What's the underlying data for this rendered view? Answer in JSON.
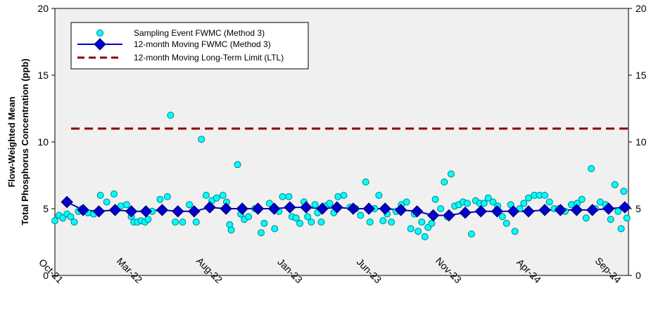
{
  "chart_data": {
    "type": "scatter",
    "ylabel_line1": "Flow-Weighted Mean",
    "ylabel_line2": "Total Phosphorus Concentration (ppb)",
    "ylim": [
      0,
      20
    ],
    "y_ticks": [
      0,
      5,
      10,
      15,
      20
    ],
    "y_tick_labels": [
      "0",
      "5",
      "10",
      "15",
      "20"
    ],
    "x_tick_labels": [
      "Oct-21",
      "Mar-22",
      "Aug-22",
      "Jan-23",
      "Jun-23",
      "Nov-23",
      "Apr-24",
      "Sep-24"
    ],
    "xlim": [
      "2021-10-01",
      "2024-10-01"
    ],
    "grid": false,
    "legend_position": "top-left",
    "colors": {
      "sampling": "#00FFFF",
      "sampling_edge": "#008080",
      "moving": "#0000CC",
      "moving_edge": "#000066",
      "ltl": "#8B0000",
      "plot_bg": "#F0F0F0"
    },
    "series": [
      {
        "name": "Sampling Event FWMC (Method 3)",
        "style": "scatter",
        "points": [
          [
            "2021-10-01",
            4.1
          ],
          [
            "2021-10-09",
            4.5
          ],
          [
            "2021-10-16",
            4.3
          ],
          [
            "2021-10-24",
            4.6
          ],
          [
            "2021-10-31",
            4.4
          ],
          [
            "2021-11-07",
            4.0
          ],
          [
            "2021-11-15",
            4.8
          ],
          [
            "2021-11-22",
            5.0
          ],
          [
            "2021-12-03",
            4.7
          ],
          [
            "2021-12-14",
            4.6
          ],
          [
            "2021-12-27",
            6.0
          ],
          [
            "2022-01-08",
            5.5
          ],
          [
            "2022-01-22",
            6.1
          ],
          [
            "2022-02-04",
            5.2
          ],
          [
            "2022-02-15",
            5.3
          ],
          [
            "2022-02-24",
            4.4
          ],
          [
            "2022-03-01",
            4.0
          ],
          [
            "2022-03-08",
            4.0
          ],
          [
            "2022-03-15",
            4.1
          ],
          [
            "2022-03-22",
            4.0
          ],
          [
            "2022-03-28",
            4.2
          ],
          [
            "2022-04-05",
            4.8
          ],
          [
            "2022-04-20",
            5.7
          ],
          [
            "2022-05-04",
            5.9
          ],
          [
            "2022-05-10",
            12.0
          ],
          [
            "2022-05-19",
            4.0
          ],
          [
            "2022-06-02",
            4.0
          ],
          [
            "2022-06-15",
            5.3
          ],
          [
            "2022-06-28",
            4.0
          ],
          [
            "2022-07-08",
            10.2
          ],
          [
            "2022-07-17",
            6.0
          ],
          [
            "2022-07-28",
            5.6
          ],
          [
            "2022-08-06",
            5.8
          ],
          [
            "2022-08-18",
            6.0
          ],
          [
            "2022-08-25",
            5.5
          ],
          [
            "2022-08-31",
            3.8
          ],
          [
            "2022-09-03",
            3.4
          ],
          [
            "2022-09-15",
            8.3
          ],
          [
            "2022-09-21",
            4.6
          ],
          [
            "2022-09-28",
            4.2
          ],
          [
            "2022-10-06",
            4.4
          ],
          [
            "2022-10-18",
            5.0
          ],
          [
            "2022-10-30",
            3.2
          ],
          [
            "2022-11-05",
            3.9
          ],
          [
            "2022-11-15",
            5.4
          ],
          [
            "2022-11-25",
            3.5
          ],
          [
            "2022-12-03",
            4.8
          ],
          [
            "2022-12-10",
            5.9
          ],
          [
            "2022-12-22",
            5.9
          ],
          [
            "2022-12-28",
            4.4
          ],
          [
            "2023-01-05",
            4.3
          ],
          [
            "2023-01-12",
            3.9
          ],
          [
            "2023-01-20",
            5.5
          ],
          [
            "2023-01-27",
            4.4
          ],
          [
            "2023-02-03",
            4.0
          ],
          [
            "2023-02-10",
            5.3
          ],
          [
            "2023-02-15",
            4.7
          ],
          [
            "2023-02-22",
            4.0
          ],
          [
            "2023-03-02",
            5.2
          ],
          [
            "2023-03-10",
            5.4
          ],
          [
            "2023-03-18",
            4.7
          ],
          [
            "2023-03-26",
            5.9
          ],
          [
            "2023-04-06",
            6.0
          ],
          [
            "2023-04-18",
            5.1
          ],
          [
            "2023-04-29",
            5.0
          ],
          [
            "2023-05-08",
            4.5
          ],
          [
            "2023-05-18",
            7.0
          ],
          [
            "2023-05-26",
            4.0
          ],
          [
            "2023-06-04",
            5.0
          ],
          [
            "2023-06-12",
            6.0
          ],
          [
            "2023-06-20",
            4.1
          ],
          [
            "2023-06-28",
            4.6
          ],
          [
            "2023-07-06",
            4.0
          ],
          [
            "2023-07-15",
            4.8
          ],
          [
            "2023-07-25",
            5.3
          ],
          [
            "2023-08-04",
            5.5
          ],
          [
            "2023-08-12",
            3.5
          ],
          [
            "2023-08-19",
            4.6
          ],
          [
            "2023-08-26",
            3.3
          ],
          [
            "2023-09-02",
            4.0
          ],
          [
            "2023-09-08",
            2.9
          ],
          [
            "2023-09-14",
            3.6
          ],
          [
            "2023-09-21",
            3.9
          ],
          [
            "2023-09-28",
            5.7
          ],
          [
            "2023-10-08",
            5.0
          ],
          [
            "2023-10-15",
            7.0
          ],
          [
            "2023-10-21",
            4.4
          ],
          [
            "2023-10-28",
            7.6
          ],
          [
            "2023-11-04",
            5.2
          ],
          [
            "2023-11-12",
            5.3
          ],
          [
            "2023-11-20",
            5.5
          ],
          [
            "2023-11-28",
            5.4
          ],
          [
            "2023-12-06",
            3.1
          ],
          [
            "2023-12-14",
            5.6
          ],
          [
            "2023-12-22",
            5.4
          ],
          [
            "2023-12-30",
            5.4
          ],
          [
            "2024-01-07",
            5.8
          ],
          [
            "2024-01-16",
            5.5
          ],
          [
            "2024-01-25",
            5.2
          ],
          [
            "2024-02-03",
            4.4
          ],
          [
            "2024-02-11",
            3.9
          ],
          [
            "2024-02-19",
            5.3
          ],
          [
            "2024-02-27",
            3.3
          ],
          [
            "2024-03-07",
            5.0
          ],
          [
            "2024-03-15",
            5.4
          ],
          [
            "2024-03-24",
            5.8
          ],
          [
            "2024-04-04",
            6.0
          ],
          [
            "2024-04-14",
            6.0
          ],
          [
            "2024-04-24",
            6.0
          ],
          [
            "2024-05-03",
            5.5
          ],
          [
            "2024-05-12",
            5.0
          ],
          [
            "2024-05-21",
            5.0
          ],
          [
            "2024-06-02",
            4.8
          ],
          [
            "2024-06-14",
            5.3
          ],
          [
            "2024-06-25",
            5.4
          ],
          [
            "2024-07-04",
            5.7
          ],
          [
            "2024-07-12",
            4.3
          ],
          [
            "2024-07-22",
            8.0
          ],
          [
            "2024-07-30",
            5.0
          ],
          [
            "2024-08-08",
            5.5
          ],
          [
            "2024-08-18",
            5.3
          ],
          [
            "2024-08-28",
            4.2
          ],
          [
            "2024-09-05",
            6.8
          ],
          [
            "2024-09-11",
            4.8
          ],
          [
            "2024-09-17",
            3.5
          ],
          [
            "2024-09-22",
            6.3
          ],
          [
            "2024-09-28",
            4.3
          ]
        ]
      },
      {
        "name": "12-month Moving FWMC (Method 3)",
        "style": "line-diamond",
        "points": [
          [
            "2021-10-24",
            5.5
          ],
          [
            "2021-11-24",
            4.9
          ],
          [
            "2021-12-24",
            4.8
          ],
          [
            "2022-01-24",
            4.9
          ],
          [
            "2022-02-24",
            4.8
          ],
          [
            "2022-03-24",
            4.8
          ],
          [
            "2022-04-24",
            4.9
          ],
          [
            "2022-05-24",
            4.8
          ],
          [
            "2022-06-24",
            4.8
          ],
          [
            "2022-07-24",
            5.1
          ],
          [
            "2022-08-24",
            5.0
          ],
          [
            "2022-09-24",
            5.0
          ],
          [
            "2022-10-24",
            5.0
          ],
          [
            "2022-11-24",
            5.0
          ],
          [
            "2022-12-24",
            5.1
          ],
          [
            "2023-01-24",
            5.1
          ],
          [
            "2023-02-24",
            5.0
          ],
          [
            "2023-03-24",
            5.1
          ],
          [
            "2023-04-24",
            5.0
          ],
          [
            "2023-05-24",
            5.0
          ],
          [
            "2023-06-24",
            5.0
          ],
          [
            "2023-07-24",
            4.9
          ],
          [
            "2023-08-24",
            4.8
          ],
          [
            "2023-09-24",
            4.5
          ],
          [
            "2023-10-24",
            4.5
          ],
          [
            "2023-11-24",
            4.7
          ],
          [
            "2023-12-24",
            4.8
          ],
          [
            "2024-01-24",
            4.8
          ],
          [
            "2024-02-24",
            4.8
          ],
          [
            "2024-03-24",
            4.8
          ],
          [
            "2024-04-24",
            4.9
          ],
          [
            "2024-05-24",
            4.9
          ],
          [
            "2024-06-24",
            4.9
          ],
          [
            "2024-07-24",
            4.9
          ],
          [
            "2024-08-24",
            5.0
          ],
          [
            "2024-09-24",
            5.1
          ]
        ]
      },
      {
        "name": "12-month Moving Long-Term Limit (LTL)",
        "style": "dashed-line",
        "points": [
          [
            "2021-11-01",
            11.0
          ],
          [
            "2024-10-01",
            11.0
          ]
        ]
      }
    ]
  }
}
